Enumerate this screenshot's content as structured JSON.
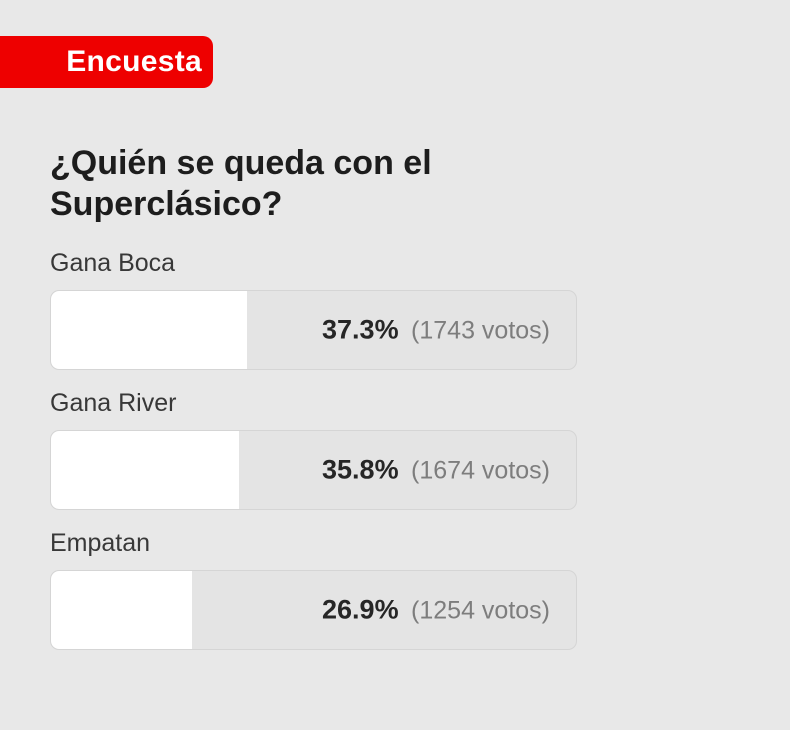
{
  "badge": {
    "label": "Encuesta",
    "background_color": "#ee0000",
    "text_color": "#ffffff"
  },
  "poll": {
    "question": "¿Quién se queda con el Superclásico?",
    "options": [
      {
        "label": "Gana Boca",
        "percent": 37.3,
        "percent_label": "37.3%",
        "votes": 1743,
        "votes_label": "(1743 votos)"
      },
      {
        "label": "Gana River",
        "percent": 35.8,
        "percent_label": "35.8%",
        "votes": 1674,
        "votes_label": "(1674 votos)"
      },
      {
        "label": "Empatan",
        "percent": 26.9,
        "percent_label": "26.9%",
        "votes": 1254,
        "votes_label": "(1254 votos)"
      }
    ]
  },
  "colors": {
    "page_background": "#e8e8e8",
    "accent_red": "#ee0000",
    "question_text": "#1d1d1d",
    "option_label_text": "#383838",
    "percent_text": "#262626",
    "votes_text": "#7d7d7d",
    "bar_background": "#e4e4e4",
    "bar_border": "#d5d5d5",
    "bar_fill": "#ffffff"
  },
  "chart_data": {
    "type": "bar",
    "title": "¿Quién se queda con el Superclásico?",
    "categories": [
      "Gana Boca",
      "Gana River",
      "Empatan"
    ],
    "values": [
      37.3,
      35.8,
      26.9
    ],
    "votes": [
      1743,
      1674,
      1254
    ],
    "unit": "%",
    "xlim": [
      0,
      100
    ],
    "orientation": "horizontal"
  }
}
